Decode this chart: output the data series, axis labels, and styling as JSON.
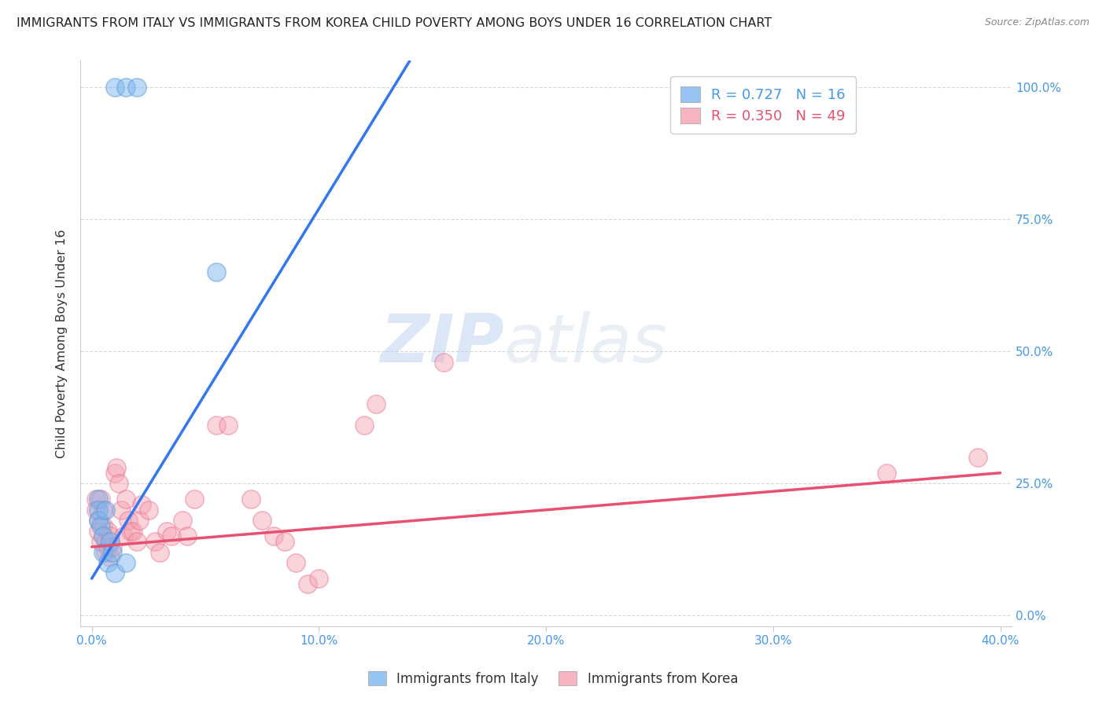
{
  "title": "IMMIGRANTS FROM ITALY VS IMMIGRANTS FROM KOREA CHILD POVERTY AMONG BOYS UNDER 16 CORRELATION CHART",
  "source": "Source: ZipAtlas.com",
  "ylabel": "Child Poverty Among Boys Under 16",
  "xlabel_ticks": [
    "0.0%",
    "10.0%",
    "20.0%",
    "30.0%",
    "40.0%"
  ],
  "xlabel_vals": [
    0,
    0.1,
    0.2,
    0.3,
    0.4
  ],
  "ylabel_ticks": [
    "0.0%",
    "25.0%",
    "50.0%",
    "75.0%",
    "100.0%"
  ],
  "ylabel_vals": [
    0,
    0.25,
    0.5,
    0.75,
    1.0
  ],
  "xlim": [
    -0.005,
    0.405
  ],
  "ylim": [
    -0.02,
    1.05
  ],
  "italy_color": "#7EB6F0",
  "korea_color": "#F5A0B0",
  "italy_edge_color": "#5A9BD5",
  "korea_edge_color": "#E87090",
  "italy_line_color": "#3377EE",
  "korea_line_color": "#E85070",
  "italy_R": 0.727,
  "italy_N": 16,
  "korea_R": 0.35,
  "korea_N": 49,
  "watermark_zip": "ZIP",
  "watermark_atlas": "atlas",
  "italy_scatter": [
    [
      0.01,
      1.0
    ],
    [
      0.015,
      1.0
    ],
    [
      0.02,
      1.0
    ],
    [
      0.055,
      0.65
    ],
    [
      0.003,
      0.22
    ],
    [
      0.003,
      0.2
    ],
    [
      0.003,
      0.18
    ],
    [
      0.004,
      0.17
    ],
    [
      0.005,
      0.15
    ],
    [
      0.005,
      0.12
    ],
    [
      0.006,
      0.2
    ],
    [
      0.007,
      0.1
    ],
    [
      0.008,
      0.14
    ],
    [
      0.009,
      0.12
    ],
    [
      0.01,
      0.08
    ],
    [
      0.015,
      0.1
    ]
  ],
  "korea_scatter": [
    [
      0.002,
      0.22
    ],
    [
      0.002,
      0.2
    ],
    [
      0.003,
      0.18
    ],
    [
      0.003,
      0.16
    ],
    [
      0.004,
      0.22
    ],
    [
      0.004,
      0.14
    ],
    [
      0.005,
      0.2
    ],
    [
      0.005,
      0.17
    ],
    [
      0.006,
      0.14
    ],
    [
      0.006,
      0.12
    ],
    [
      0.007,
      0.16
    ],
    [
      0.007,
      0.13
    ],
    [
      0.008,
      0.15
    ],
    [
      0.008,
      0.11
    ],
    [
      0.009,
      0.13
    ],
    [
      0.01,
      0.27
    ],
    [
      0.011,
      0.28
    ],
    [
      0.012,
      0.25
    ],
    [
      0.013,
      0.2
    ],
    [
      0.014,
      0.15
    ],
    [
      0.015,
      0.22
    ],
    [
      0.016,
      0.18
    ],
    [
      0.017,
      0.16
    ],
    [
      0.018,
      0.16
    ],
    [
      0.02,
      0.14
    ],
    [
      0.021,
      0.18
    ],
    [
      0.022,
      0.21
    ],
    [
      0.025,
      0.2
    ],
    [
      0.028,
      0.14
    ],
    [
      0.03,
      0.12
    ],
    [
      0.033,
      0.16
    ],
    [
      0.035,
      0.15
    ],
    [
      0.04,
      0.18
    ],
    [
      0.042,
      0.15
    ],
    [
      0.045,
      0.22
    ],
    [
      0.055,
      0.36
    ],
    [
      0.06,
      0.36
    ],
    [
      0.07,
      0.22
    ],
    [
      0.075,
      0.18
    ],
    [
      0.08,
      0.15
    ],
    [
      0.085,
      0.14
    ],
    [
      0.09,
      0.1
    ],
    [
      0.095,
      0.06
    ],
    [
      0.1,
      0.07
    ],
    [
      0.12,
      0.36
    ],
    [
      0.125,
      0.4
    ],
    [
      0.155,
      0.48
    ],
    [
      0.35,
      0.27
    ],
    [
      0.39,
      0.3
    ]
  ],
  "italy_line": [
    [
      0.0,
      0.07
    ],
    [
      0.14,
      1.05
    ]
  ],
  "korea_line": [
    [
      0.0,
      0.13
    ],
    [
      0.4,
      0.27
    ]
  ]
}
